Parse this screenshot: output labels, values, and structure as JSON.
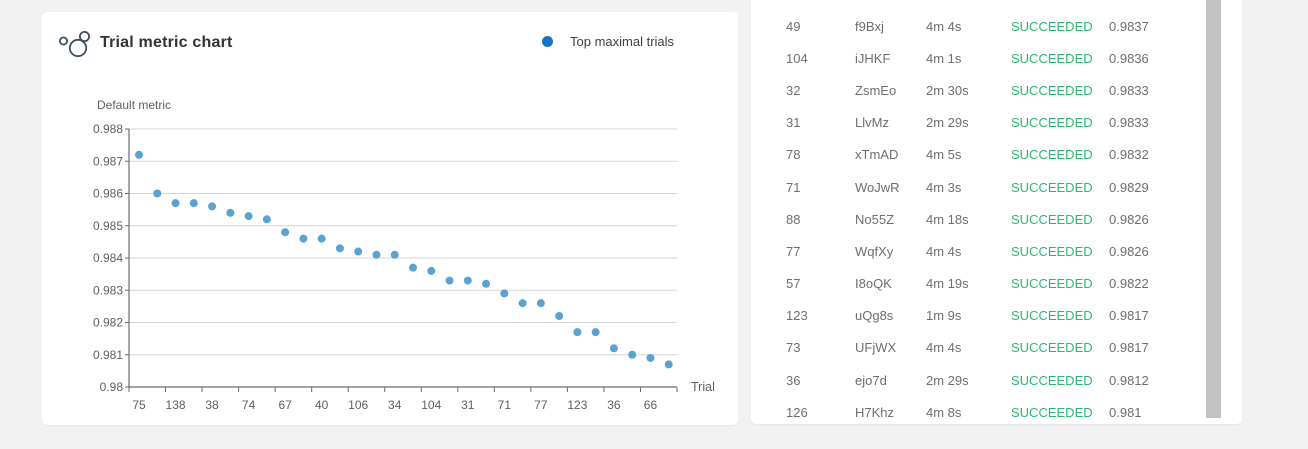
{
  "page": {
    "background": "#f2f2f2"
  },
  "chart_card": {
    "title": "Trial metric chart",
    "icon": "bubble-chart-icon",
    "legend": {
      "label": "Top maximal trials",
      "dot_color": "#1575c5"
    }
  },
  "chart_data": {
    "type": "scatter",
    "series_name": "Top maximal trials",
    "point_color": "#58a3d0",
    "ylabel": "Default metric",
    "xlabel": "Trial",
    "ylim": [
      0.98,
      0.988
    ],
    "yticks": [
      "0.988",
      "0.987",
      "0.986",
      "0.985",
      "0.984",
      "0.983",
      "0.982",
      "0.981",
      "0.98"
    ],
    "x_tick_labels": [
      "75",
      "138",
      "38",
      "74",
      "67",
      "40",
      "106",
      "34",
      "104",
      "31",
      "71",
      "77",
      "123",
      "36",
      "66"
    ],
    "x_label_every_n_points": 2,
    "grid": true,
    "values": [
      0.9872,
      0.986,
      0.9857,
      0.9857,
      0.9856,
      0.9854,
      0.9853,
      0.9852,
      0.9848,
      0.9846,
      0.9846,
      0.9843,
      0.9842,
      0.9841,
      0.9841,
      0.9837,
      0.9836,
      0.9833,
      0.9833,
      0.9832,
      0.9829,
      0.9826,
      0.9826,
      0.9822,
      0.9817,
      0.9817,
      0.9812,
      0.981,
      0.9809,
      0.9807
    ]
  },
  "trials_table": {
    "status_color": "#2bb673",
    "rows": [
      {
        "id": "49",
        "name": "f9Bxj",
        "duration": "4m 4s",
        "status": "SUCCEEDED",
        "metric": "0.9837"
      },
      {
        "id": "104",
        "name": "iJHKF",
        "duration": "4m 1s",
        "status": "SUCCEEDED",
        "metric": "0.9836"
      },
      {
        "id": "32",
        "name": "ZsmEo",
        "duration": "2m 30s",
        "status": "SUCCEEDED",
        "metric": "0.9833"
      },
      {
        "id": "31",
        "name": "LlvMz",
        "duration": "2m 29s",
        "status": "SUCCEEDED",
        "metric": "0.9833"
      },
      {
        "id": "78",
        "name": "xTmAD",
        "duration": "4m 5s",
        "status": "SUCCEEDED",
        "metric": "0.9832"
      },
      {
        "id": "71",
        "name": "WoJwR",
        "duration": "4m 3s",
        "status": "SUCCEEDED",
        "metric": "0.9829"
      },
      {
        "id": "88",
        "name": "No55Z",
        "duration": "4m 18s",
        "status": "SUCCEEDED",
        "metric": "0.9826"
      },
      {
        "id": "77",
        "name": "WqfXy",
        "duration": "4m 4s",
        "status": "SUCCEEDED",
        "metric": "0.9826"
      },
      {
        "id": "57",
        "name": "I8oQK",
        "duration": "4m 19s",
        "status": "SUCCEEDED",
        "metric": "0.9822"
      },
      {
        "id": "123",
        "name": "uQg8s",
        "duration": "1m 9s",
        "status": "SUCCEEDED",
        "metric": "0.9817"
      },
      {
        "id": "73",
        "name": "UFjWX",
        "duration": "4m 4s",
        "status": "SUCCEEDED",
        "metric": "0.9817"
      },
      {
        "id": "36",
        "name": "ejo7d",
        "duration": "2m 29s",
        "status": "SUCCEEDED",
        "metric": "0.9812"
      },
      {
        "id": "126",
        "name": "H7Khz",
        "duration": "4m 8s",
        "status": "SUCCEEDED",
        "metric": "0.981"
      }
    ]
  }
}
